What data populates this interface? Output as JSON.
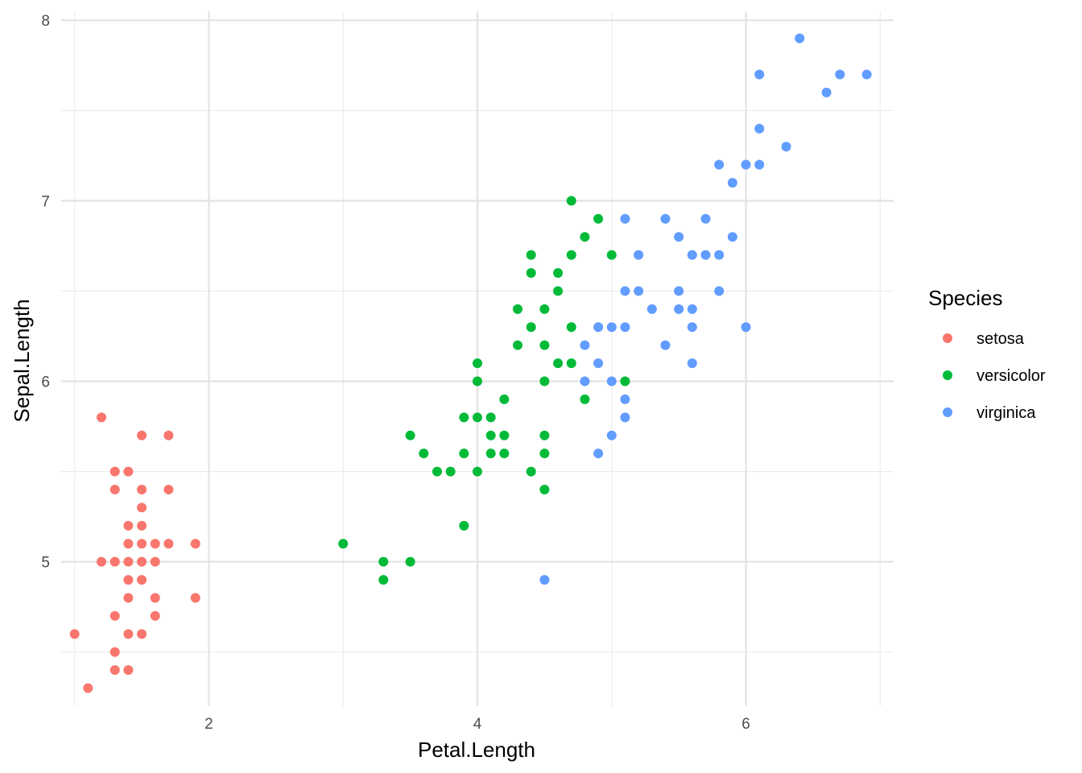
{
  "chart_data": {
    "type": "scatter",
    "title": "",
    "xlabel": "Petal.Length",
    "ylabel": "Sepal.Length",
    "xlim": [
      0.9,
      7.1
    ],
    "ylim": [
      4.2,
      8.05
    ],
    "x_ticks": [
      2,
      4,
      6
    ],
    "x_minor_ticks": [
      1,
      3,
      5,
      7
    ],
    "y_ticks": [
      5,
      6,
      7,
      8
    ],
    "y_minor_ticks": [
      4.5,
      5.5,
      6.5,
      7.5
    ],
    "grid": true,
    "legend": {
      "title": "Species",
      "position": "right"
    },
    "series": [
      {
        "name": "setosa",
        "color": "#F8766D",
        "points": [
          [
            1.0,
            4.6
          ],
          [
            1.1,
            4.3
          ],
          [
            1.2,
            5.8
          ],
          [
            1.2,
            5.0
          ],
          [
            1.3,
            5.5
          ],
          [
            1.3,
            5.4
          ],
          [
            1.3,
            5.0
          ],
          [
            1.3,
            4.7
          ],
          [
            1.3,
            4.5
          ],
          [
            1.3,
            4.4
          ],
          [
            1.4,
            5.5
          ],
          [
            1.4,
            5.2
          ],
          [
            1.4,
            5.1
          ],
          [
            1.4,
            5.0
          ],
          [
            1.4,
            4.9
          ],
          [
            1.4,
            4.8
          ],
          [
            1.4,
            4.6
          ],
          [
            1.4,
            4.4
          ],
          [
            1.5,
            5.7
          ],
          [
            1.5,
            5.4
          ],
          [
            1.5,
            5.3
          ],
          [
            1.5,
            5.2
          ],
          [
            1.5,
            5.1
          ],
          [
            1.5,
            5.0
          ],
          [
            1.5,
            4.9
          ],
          [
            1.5,
            4.6
          ],
          [
            1.6,
            5.1
          ],
          [
            1.6,
            5.0
          ],
          [
            1.6,
            4.8
          ],
          [
            1.6,
            4.7
          ],
          [
            1.7,
            5.7
          ],
          [
            1.7,
            5.4
          ],
          [
            1.7,
            5.1
          ],
          [
            1.9,
            5.1
          ],
          [
            1.9,
            4.8
          ]
        ]
      },
      {
        "name": "versicolor",
        "color": "#00BA38",
        "points": [
          [
            3.0,
            5.1
          ],
          [
            3.3,
            5.0
          ],
          [
            3.3,
            4.9
          ],
          [
            3.5,
            5.7
          ],
          [
            3.5,
            5.0
          ],
          [
            3.6,
            5.6
          ],
          [
            3.7,
            5.5
          ],
          [
            3.8,
            5.5
          ],
          [
            3.9,
            5.8
          ],
          [
            3.9,
            5.6
          ],
          [
            3.9,
            5.2
          ],
          [
            4.0,
            6.1
          ],
          [
            4.0,
            6.0
          ],
          [
            4.0,
            5.8
          ],
          [
            4.0,
            5.5
          ],
          [
            4.1,
            5.8
          ],
          [
            4.1,
            5.7
          ],
          [
            4.1,
            5.6
          ],
          [
            4.2,
            5.9
          ],
          [
            4.2,
            5.7
          ],
          [
            4.2,
            5.6
          ],
          [
            4.3,
            6.4
          ],
          [
            4.3,
            6.2
          ],
          [
            4.4,
            6.7
          ],
          [
            4.4,
            6.6
          ],
          [
            4.4,
            6.3
          ],
          [
            4.4,
            5.5
          ],
          [
            4.5,
            6.4
          ],
          [
            4.5,
            6.2
          ],
          [
            4.5,
            6.0
          ],
          [
            4.5,
            5.7
          ],
          [
            4.5,
            5.6
          ],
          [
            4.5,
            5.4
          ],
          [
            4.6,
            6.6
          ],
          [
            4.6,
            6.5
          ],
          [
            4.6,
            6.1
          ],
          [
            4.7,
            7.0
          ],
          [
            4.7,
            6.7
          ],
          [
            4.7,
            6.3
          ],
          [
            4.7,
            6.1
          ],
          [
            4.8,
            6.8
          ],
          [
            4.8,
            5.9
          ],
          [
            4.9,
            6.9
          ],
          [
            5.0,
            6.7
          ],
          [
            5.1,
            6.0
          ]
        ]
      },
      {
        "name": "virginica",
        "color": "#619CFF",
        "points": [
          [
            4.5,
            4.9
          ],
          [
            4.8,
            6.2
          ],
          [
            4.8,
            6.0
          ],
          [
            4.9,
            6.3
          ],
          [
            4.9,
            6.1
          ],
          [
            4.9,
            5.6
          ],
          [
            5.0,
            6.3
          ],
          [
            5.0,
            6.0
          ],
          [
            5.0,
            5.7
          ],
          [
            5.1,
            6.9
          ],
          [
            5.1,
            6.5
          ],
          [
            5.1,
            6.3
          ],
          [
            5.1,
            5.9
          ],
          [
            5.1,
            5.8
          ],
          [
            5.2,
            6.7
          ],
          [
            5.2,
            6.5
          ],
          [
            5.3,
            6.4
          ],
          [
            5.4,
            6.9
          ],
          [
            5.4,
            6.2
          ],
          [
            5.5,
            6.8
          ],
          [
            5.5,
            6.5
          ],
          [
            5.5,
            6.4
          ],
          [
            5.6,
            6.7
          ],
          [
            5.6,
            6.4
          ],
          [
            5.6,
            6.3
          ],
          [
            5.6,
            6.1
          ],
          [
            5.7,
            6.9
          ],
          [
            5.7,
            6.7
          ],
          [
            5.8,
            7.2
          ],
          [
            5.8,
            6.7
          ],
          [
            5.8,
            6.5
          ],
          [
            5.9,
            7.1
          ],
          [
            5.9,
            6.8
          ],
          [
            6.0,
            7.2
          ],
          [
            6.0,
            6.3
          ],
          [
            6.1,
            7.7
          ],
          [
            6.1,
            7.4
          ],
          [
            6.1,
            7.2
          ],
          [
            6.3,
            7.3
          ],
          [
            6.4,
            7.9
          ],
          [
            6.6,
            7.6
          ],
          [
            6.7,
            7.7
          ],
          [
            6.9,
            7.7
          ]
        ]
      }
    ]
  }
}
